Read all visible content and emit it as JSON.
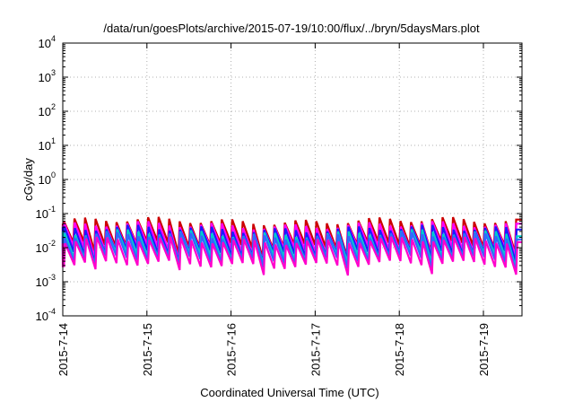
{
  "chart_data": {
    "type": "line",
    "title": "/data/run/goesPlots/archive/2015-07-19/10:00/flux/../bryn/5daysMars.plot",
    "xlabel": "Coordinated Universal Time (UTC)",
    "ylabel": "cGy/day",
    "y_scale": "log",
    "ylim": [
      0.0001,
      10000
    ],
    "y_ticks": [
      {
        "base": "10",
        "exp": "4",
        "value": 10000
      },
      {
        "base": "10",
        "exp": "3",
        "value": 1000
      },
      {
        "base": "10",
        "exp": "2",
        "value": 100
      },
      {
        "base": "10",
        "exp": "1",
        "value": 10
      },
      {
        "base": "10",
        "exp": "0",
        "value": 1
      },
      {
        "base": "10",
        "exp": "-1",
        "value": 0.1
      },
      {
        "base": "10",
        "exp": "-2",
        "value": 0.01
      },
      {
        "base": "10",
        "exp": "-3",
        "value": 0.001
      },
      {
        "base": "10",
        "exp": "-4",
        "value": 0.0001
      }
    ],
    "xlim": [
      "2015-07-14",
      "2015-07-19T11:00"
    ],
    "x_tick_labels": [
      "2015-7-14",
      "2015-7-15",
      "2015-7-16",
      "2015-7-17",
      "2015-7-18",
      "2015-7-19"
    ],
    "grid": true,
    "sawtooth_period_hours": 3,
    "series": [
      {
        "color": "#cc0000",
        "peak": 0.06,
        "trough": 0.012
      },
      {
        "color": "#ff00ff",
        "peak": 0.045,
        "trough": 0.009
      },
      {
        "color": "#1a1aff",
        "peak": 0.035,
        "trough": 0.007
      },
      {
        "color": "#00cccc",
        "peak": 0.026,
        "trough": 0.0055
      },
      {
        "color": "#3366ff",
        "peak": 0.022,
        "trough": 0.0045
      },
      {
        "color": "#ff00cc",
        "peak": 0.016,
        "trough": 0.0032
      }
    ]
  }
}
